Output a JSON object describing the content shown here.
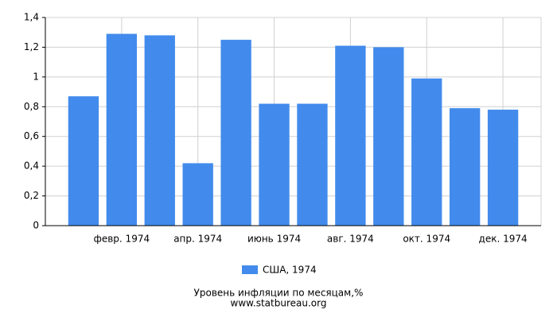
{
  "chart_data": {
    "type": "bar",
    "title": "Уровень инфляции по месяцам,%",
    "source": "www.statbureau.org",
    "categories": [
      null,
      "февр. 1974",
      null,
      "апр. 1974",
      null,
      "июнь 1974",
      null,
      "авг. 1974",
      null,
      "окт. 1974",
      null,
      "дек. 1974"
    ],
    "series": [
      {
        "name": "США, 1974",
        "color": "#428bec",
        "values": [
          0.87,
          1.29,
          1.28,
          0.42,
          1.25,
          0.82,
          0.82,
          1.21,
          1.2,
          0.99,
          0.79,
          0.78
        ]
      }
    ],
    "ylim": [
      0,
      1.4
    ],
    "yticks": [
      0,
      {
        "value": 0.2,
        "label": "0,2"
      },
      {
        "value": 0.4,
        "label": "0,4"
      },
      {
        "value": 0.6,
        "label": "0,6"
      },
      {
        "value": 0.8,
        "label": "0,8"
      },
      1,
      {
        "value": 1.2,
        "label": "1,2"
      },
      {
        "value": 1.4,
        "label": "1,4"
      }
    ],
    "grid": true
  }
}
